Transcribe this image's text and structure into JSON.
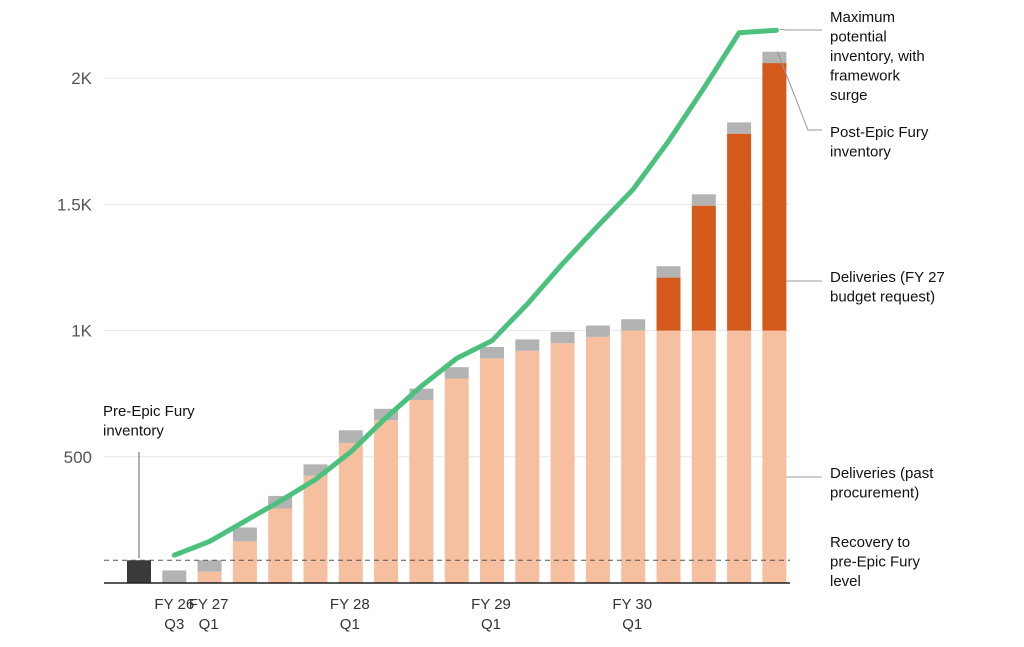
{
  "chart_data": {
    "type": "bar",
    "stacked": true,
    "y_ticks": [
      {
        "value": 500,
        "label": "500"
      },
      {
        "value": 1000,
        "label": "1K"
      },
      {
        "value": 1500,
        "label": "1.5K"
      },
      {
        "value": 2000,
        "label": "2K"
      }
    ],
    "ylim": [
      0,
      2250
    ],
    "x_ticks": [
      {
        "index": 1,
        "lines": [
          "FY 26",
          "Q3"
        ]
      },
      {
        "index": 2,
        "lines": [
          "FY 27",
          "Q1"
        ]
      },
      {
        "index": 6,
        "lines": [
          "FY 28",
          "Q1"
        ]
      },
      {
        "index": 10,
        "lines": [
          "FY 29",
          "Q1"
        ]
      },
      {
        "index": 14,
        "lines": [
          "FY 30",
          "Q1"
        ]
      }
    ],
    "pre_epic_fury_inventory": {
      "index": 0,
      "value": 90
    },
    "reference_level": 90,
    "categories_count": 19,
    "series": [
      {
        "key": "past",
        "color": "#F5BFA0",
        "values": [
          0,
          0,
          45,
          165,
          295,
          425,
          555,
          645,
          725,
          810,
          890,
          920,
          950,
          975,
          1000,
          1000,
          1000,
          1000,
          1000
        ]
      },
      {
        "key": "budget",
        "color": "#D35A1A",
        "values": [
          0,
          0,
          0,
          0,
          0,
          0,
          0,
          0,
          0,
          0,
          0,
          0,
          0,
          0,
          0,
          210,
          495,
          780,
          1060
        ]
      },
      {
        "key": "top",
        "color": "#B3B3B3",
        "values": [
          0,
          50,
          45,
          55,
          50,
          45,
          50,
          45,
          45,
          45,
          45,
          45,
          45,
          45,
          45,
          45,
          45,
          45,
          45
        ]
      }
    ],
    "surge_line": {
      "color": "#4CC17E",
      "x": [
        1,
        2,
        3,
        4,
        5,
        6,
        7,
        8,
        9,
        10,
        11,
        12,
        13,
        14,
        15,
        16,
        17,
        18
      ],
      "y": [
        110,
        165,
        245,
        325,
        410,
        520,
        655,
        780,
        890,
        960,
        1105,
        1265,
        1415,
        1560,
        1750,
        1960,
        2180,
        2190
      ]
    },
    "annotations": [
      {
        "target": "surge",
        "lines": [
          "Maximum",
          "potential",
          "inventory, with",
          "framework",
          "surge"
        ]
      },
      {
        "target": "top",
        "lines": [
          "Post-Epic Fury",
          "inventory"
        ]
      },
      {
        "target": "budget",
        "lines": [
          "Deliveries (FY 27",
          "budget request)"
        ]
      },
      {
        "target": "past",
        "lines": [
          "Deliveries (past",
          "procurement)"
        ]
      },
      {
        "target": "reference",
        "lines": [
          "Recovery to",
          "pre-Epic Fury",
          "level"
        ]
      }
    ],
    "pre_label": [
      "Pre-Epic Fury",
      "inventory"
    ],
    "colors": {
      "pre": "#3A3A3A",
      "grid": "#E6E6E6",
      "axis": "#222222",
      "ref": "#555555"
    }
  }
}
